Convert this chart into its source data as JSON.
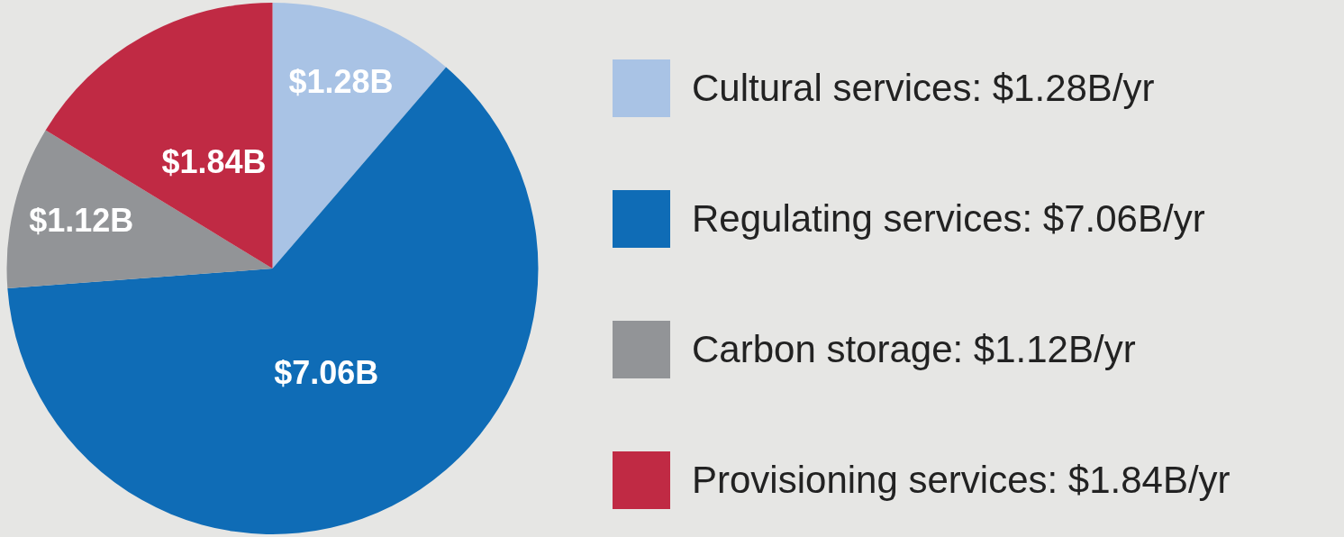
{
  "chart_data": {
    "type": "pie",
    "categories": [
      "Cultural services: $1.28B/yr",
      "Regulating services: $7.06B/yr",
      "Carbon storage: $1.12B/yr",
      "Provisioning services: $1.84B/yr"
    ],
    "values": [
      1.28,
      7.06,
      1.12,
      1.84
    ],
    "value_labels": [
      "$1.28B",
      "$7.06B",
      "$1.12B",
      "$1.84B"
    ],
    "colors": [
      "#a9c3e5",
      "#0f6cb6",
      "#929497",
      "#c02a44"
    ],
    "legend": "right"
  }
}
